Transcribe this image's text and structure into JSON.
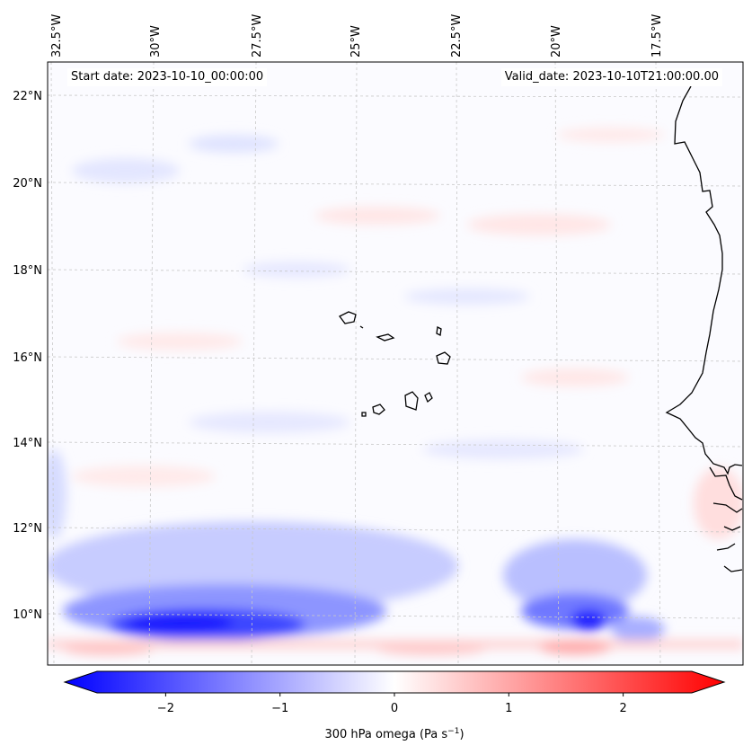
{
  "map": {
    "start_label": "Start date: 2023-10-10_00:00:00",
    "valid_label": "Valid_date: 2023-10-10T21:00:00.00",
    "lon_labels": [
      "32.5°W",
      "30°W",
      "27.5°W",
      "25°W",
      "22.5°W",
      "20°W",
      "17.5°W"
    ],
    "lat_labels": [
      "22°N",
      "20°N",
      "18°N",
      "16°N",
      "14°N",
      "12°N",
      "10°N"
    ],
    "field": "300 hPa omega"
  },
  "colorbar": {
    "ticks": [
      "−2",
      "−1",
      "0",
      "1",
      "2"
    ],
    "tick_values": [
      -2,
      -1,
      0,
      1,
      2
    ],
    "range": [
      -2.6,
      2.6
    ],
    "label": "300 hPa omega (Pa s",
    "label_sup": "−1",
    "label_close": ")"
  },
  "colors": {
    "negative": "#0000ff",
    "zero": "#ffffff",
    "positive": "#ff0000",
    "coastline": "#000000",
    "grid": "#c8c8c8"
  }
}
